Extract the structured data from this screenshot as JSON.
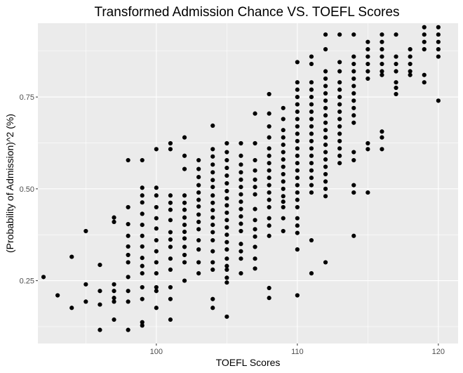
{
  "chart_data": {
    "type": "scatter",
    "title": "Transformed Admission Chance VS. TOEFL Scores",
    "xlabel": "TOEFL Scores",
    "ylabel": "(Probability of Admission)^2 (%)",
    "xlim": [
      91.6,
      121.4
    ],
    "ylim": [
      0.079,
      0.951
    ],
    "x_ticks": [
      100,
      110,
      120
    ],
    "x_tick_labels": [
      "100",
      "110",
      "120"
    ],
    "y_ticks": [
      0.25,
      0.5,
      0.75
    ],
    "y_tick_labels": [
      "0.25",
      "0.50",
      "0.75"
    ],
    "grid": true,
    "colors": {
      "panel": "#ebebeb",
      "grid": "#ffffff",
      "point": "#000000"
    },
    "points": [
      [
        92,
        0.26
      ],
      [
        93,
        0.21
      ],
      [
        94,
        0.315
      ],
      [
        94,
        0.176
      ],
      [
        95,
        0.385
      ],
      [
        95,
        0.24
      ],
      [
        95,
        0.193
      ],
      [
        96,
        0.293
      ],
      [
        96,
        0.222
      ],
      [
        96,
        0.185
      ],
      [
        96,
        0.116
      ],
      [
        97,
        0.422
      ],
      [
        97,
        0.41
      ],
      [
        97,
        0.24
      ],
      [
        97,
        0.222
      ],
      [
        97,
        0.203
      ],
      [
        97,
        0.193
      ],
      [
        97,
        0.144
      ],
      [
        98,
        0.578
      ],
      [
        98,
        0.45
      ],
      [
        98,
        0.404
      ],
      [
        98,
        0.372
      ],
      [
        98,
        0.343
      ],
      [
        98,
        0.32
      ],
      [
        98,
        0.3
      ],
      [
        98,
        0.26
      ],
      [
        98,
        0.222
      ],
      [
        98,
        0.193
      ],
      [
        98,
        0.116
      ],
      [
        99,
        0.578
      ],
      [
        99,
        0.503
      ],
      [
        99,
        0.482
      ],
      [
        99,
        0.463
      ],
      [
        99,
        0.432
      ],
      [
        99,
        0.402
      ],
      [
        99,
        0.372
      ],
      [
        99,
        0.343
      ],
      [
        99,
        0.312
      ],
      [
        99,
        0.29
      ],
      [
        99,
        0.27
      ],
      [
        99,
        0.232
      ],
      [
        99,
        0.2
      ],
      [
        99,
        0.137
      ],
      [
        99,
        0.128
      ],
      [
        100,
        0.608
      ],
      [
        100,
        0.503
      ],
      [
        100,
        0.482
      ],
      [
        100,
        0.45
      ],
      [
        100,
        0.42
      ],
      [
        100,
        0.392
      ],
      [
        100,
        0.36
      ],
      [
        100,
        0.33
      ],
      [
        100,
        0.3
      ],
      [
        100,
        0.27
      ],
      [
        100,
        0.232
      ],
      [
        100,
        0.222
      ],
      [
        100,
        0.176
      ],
      [
        101,
        0.624
      ],
      [
        101,
        0.608
      ],
      [
        101,
        0.482
      ],
      [
        101,
        0.462
      ],
      [
        101,
        0.443
      ],
      [
        101,
        0.415
      ],
      [
        101,
        0.382
      ],
      [
        101,
        0.362
      ],
      [
        101,
        0.342
      ],
      [
        101,
        0.31
      ],
      [
        101,
        0.28
      ],
      [
        101,
        0.232
      ],
      [
        101,
        0.2
      ],
      [
        101,
        0.144
      ],
      [
        102,
        0.64
      ],
      [
        102,
        0.59
      ],
      [
        102,
        0.554
      ],
      [
        102,
        0.482
      ],
      [
        102,
        0.462
      ],
      [
        102,
        0.443
      ],
      [
        102,
        0.422
      ],
      [
        102,
        0.402
      ],
      [
        102,
        0.383
      ],
      [
        102,
        0.365
      ],
      [
        102,
        0.342
      ],
      [
        102,
        0.32
      ],
      [
        102,
        0.3
      ],
      [
        102,
        0.25
      ],
      [
        103,
        0.578
      ],
      [
        103,
        0.554
      ],
      [
        103,
        0.532
      ],
      [
        103,
        0.51
      ],
      [
        103,
        0.49
      ],
      [
        103,
        0.47
      ],
      [
        103,
        0.452
      ],
      [
        103,
        0.43
      ],
      [
        103,
        0.41
      ],
      [
        103,
        0.39
      ],
      [
        103,
        0.36
      ],
      [
        103,
        0.335
      ],
      [
        103,
        0.3
      ],
      [
        103,
        0.27
      ],
      [
        104,
        0.672
      ],
      [
        104,
        0.608
      ],
      [
        104,
        0.588
      ],
      [
        104,
        0.566
      ],
      [
        104,
        0.545
      ],
      [
        104,
        0.524
      ],
      [
        104,
        0.505
      ],
      [
        104,
        0.482
      ],
      [
        104,
        0.462
      ],
      [
        104,
        0.442
      ],
      [
        104,
        0.422
      ],
      [
        104,
        0.402
      ],
      [
        104,
        0.382
      ],
      [
        104,
        0.36
      ],
      [
        104,
        0.33
      ],
      [
        104,
        0.3
      ],
      [
        104,
        0.28
      ],
      [
        104,
        0.2
      ],
      [
        104,
        0.176
      ],
      [
        105,
        0.624
      ],
      [
        105,
        0.6
      ],
      [
        105,
        0.578
      ],
      [
        105,
        0.557
      ],
      [
        105,
        0.536
      ],
      [
        105,
        0.515
      ],
      [
        105,
        0.494
      ],
      [
        105,
        0.474
      ],
      [
        105,
        0.455
      ],
      [
        105,
        0.435
      ],
      [
        105,
        0.415
      ],
      [
        105,
        0.395
      ],
      [
        105,
        0.375
      ],
      [
        105,
        0.355
      ],
      [
        105,
        0.335
      ],
      [
        105,
        0.31
      ],
      [
        105,
        0.29
      ],
      [
        105,
        0.28
      ],
      [
        105,
        0.258
      ],
      [
        105,
        0.245
      ],
      [
        105,
        0.152
      ],
      [
        106,
        0.624
      ],
      [
        106,
        0.59
      ],
      [
        106,
        0.566
      ],
      [
        106,
        0.545
      ],
      [
        106,
        0.525
      ],
      [
        106,
        0.505
      ],
      [
        106,
        0.485
      ],
      [
        106,
        0.465
      ],
      [
        106,
        0.445
      ],
      [
        106,
        0.425
      ],
      [
        106,
        0.405
      ],
      [
        106,
        0.385
      ],
      [
        106,
        0.35
      ],
      [
        106,
        0.33
      ],
      [
        106,
        0.31
      ],
      [
        106,
        0.27
      ],
      [
        107,
        0.705
      ],
      [
        107,
        0.624
      ],
      [
        107,
        0.578
      ],
      [
        107,
        0.55
      ],
      [
        107,
        0.525
      ],
      [
        107,
        0.505
      ],
      [
        107,
        0.485
      ],
      [
        107,
        0.445
      ],
      [
        107,
        0.415
      ],
      [
        107,
        0.39
      ],
      [
        107,
        0.37
      ],
      [
        107,
        0.342
      ],
      [
        107,
        0.31
      ],
      [
        107,
        0.283
      ],
      [
        108,
        0.758
      ],
      [
        108,
        0.705
      ],
      [
        108,
        0.67
      ],
      [
        108,
        0.64
      ],
      [
        108,
        0.61
      ],
      [
        108,
        0.59
      ],
      [
        108,
        0.57
      ],
      [
        108,
        0.55
      ],
      [
        108,
        0.53
      ],
      [
        108,
        0.51
      ],
      [
        108,
        0.49
      ],
      [
        108,
        0.47
      ],
      [
        108,
        0.45
      ],
      [
        108,
        0.42
      ],
      [
        108,
        0.4
      ],
      [
        108,
        0.372
      ],
      [
        108,
        0.23
      ],
      [
        108,
        0.203
      ],
      [
        109,
        0.72
      ],
      [
        109,
        0.69
      ],
      [
        109,
        0.66
      ],
      [
        109,
        0.64
      ],
      [
        109,
        0.62
      ],
      [
        109,
        0.6
      ],
      [
        109,
        0.58
      ],
      [
        109,
        0.56
      ],
      [
        109,
        0.54
      ],
      [
        109,
        0.52
      ],
      [
        109,
        0.5
      ],
      [
        109,
        0.48
      ],
      [
        109,
        0.465
      ],
      [
        109,
        0.45
      ],
      [
        109,
        0.42
      ],
      [
        109,
        0.385
      ],
      [
        110,
        0.845
      ],
      [
        110,
        0.79
      ],
      [
        110,
        0.77
      ],
      [
        110,
        0.75
      ],
      [
        110,
        0.73
      ],
      [
        110,
        0.71
      ],
      [
        110,
        0.69
      ],
      [
        110,
        0.67
      ],
      [
        110,
        0.65
      ],
      [
        110,
        0.63
      ],
      [
        110,
        0.61
      ],
      [
        110,
        0.59
      ],
      [
        110,
        0.57
      ],
      [
        110,
        0.55
      ],
      [
        110,
        0.53
      ],
      [
        110,
        0.51
      ],
      [
        110,
        0.49
      ],
      [
        110,
        0.47
      ],
      [
        110,
        0.45
      ],
      [
        110,
        0.42
      ],
      [
        110,
        0.4
      ],
      [
        110,
        0.38
      ],
      [
        110,
        0.335
      ],
      [
        110,
        0.21
      ],
      [
        111,
        0.86
      ],
      [
        111,
        0.84
      ],
      [
        111,
        0.79
      ],
      [
        111,
        0.77
      ],
      [
        111,
        0.75
      ],
      [
        111,
        0.73
      ],
      [
        111,
        0.71
      ],
      [
        111,
        0.69
      ],
      [
        111,
        0.67
      ],
      [
        111,
        0.65
      ],
      [
        111,
        0.63
      ],
      [
        111,
        0.61
      ],
      [
        111,
        0.59
      ],
      [
        111,
        0.57
      ],
      [
        111,
        0.55
      ],
      [
        111,
        0.53
      ],
      [
        111,
        0.51
      ],
      [
        111,
        0.49
      ],
      [
        111,
        0.36
      ],
      [
        111,
        0.27
      ],
      [
        112,
        0.92
      ],
      [
        112,
        0.88
      ],
      [
        112,
        0.82
      ],
      [
        112,
        0.8
      ],
      [
        112,
        0.78
      ],
      [
        112,
        0.76
      ],
      [
        112,
        0.74
      ],
      [
        112,
        0.72
      ],
      [
        112,
        0.7
      ],
      [
        112,
        0.68
      ],
      [
        112,
        0.66
      ],
      [
        112,
        0.64
      ],
      [
        112,
        0.62
      ],
      [
        112,
        0.6
      ],
      [
        112,
        0.58
      ],
      [
        112,
        0.56
      ],
      [
        112,
        0.54
      ],
      [
        112,
        0.52
      ],
      [
        112,
        0.5
      ],
      [
        112,
        0.48
      ],
      [
        112,
        0.3
      ],
      [
        113,
        0.92
      ],
      [
        113,
        0.845
      ],
      [
        113,
        0.82
      ],
      [
        113,
        0.79
      ],
      [
        113,
        0.77
      ],
      [
        113,
        0.75
      ],
      [
        113,
        0.73
      ],
      [
        113,
        0.71
      ],
      [
        113,
        0.69
      ],
      [
        113,
        0.67
      ],
      [
        113,
        0.65
      ],
      [
        113,
        0.63
      ],
      [
        113,
        0.61
      ],
      [
        113,
        0.59
      ],
      [
        113,
        0.57
      ],
      [
        114,
        0.92
      ],
      [
        114,
        0.86
      ],
      [
        114,
        0.84
      ],
      [
        114,
        0.82
      ],
      [
        114,
        0.8
      ],
      [
        114,
        0.78
      ],
      [
        114,
        0.76
      ],
      [
        114,
        0.74
      ],
      [
        114,
        0.72
      ],
      [
        114,
        0.7
      ],
      [
        114,
        0.68
      ],
      [
        114,
        0.6
      ],
      [
        114,
        0.578
      ],
      [
        114,
        0.51
      ],
      [
        114,
        0.49
      ],
      [
        114,
        0.372
      ],
      [
        115,
        0.9
      ],
      [
        115,
        0.88
      ],
      [
        115,
        0.86
      ],
      [
        115,
        0.84
      ],
      [
        115,
        0.82
      ],
      [
        115,
        0.8
      ],
      [
        115,
        0.624
      ],
      [
        115,
        0.608
      ],
      [
        115,
        0.49
      ],
      [
        116,
        0.92
      ],
      [
        116,
        0.9
      ],
      [
        116,
        0.88
      ],
      [
        116,
        0.86
      ],
      [
        116,
        0.84
      ],
      [
        116,
        0.82
      ],
      [
        116,
        0.81
      ],
      [
        116,
        0.656
      ],
      [
        116,
        0.64
      ],
      [
        116,
        0.608
      ],
      [
        117,
        0.92
      ],
      [
        117,
        0.86
      ],
      [
        117,
        0.84
      ],
      [
        117,
        0.82
      ],
      [
        117,
        0.79
      ],
      [
        117,
        0.775
      ],
      [
        117,
        0.758
      ],
      [
        118,
        0.88
      ],
      [
        118,
        0.86
      ],
      [
        118,
        0.84
      ],
      [
        118,
        0.82
      ],
      [
        118,
        0.81
      ],
      [
        119,
        0.94
      ],
      [
        119,
        0.92
      ],
      [
        119,
        0.9
      ],
      [
        119,
        0.88
      ],
      [
        119,
        0.81
      ],
      [
        119,
        0.79
      ],
      [
        120,
        0.94
      ],
      [
        120,
        0.92
      ],
      [
        120,
        0.9
      ],
      [
        120,
        0.88
      ],
      [
        120,
        0.86
      ],
      [
        120,
        0.74
      ]
    ]
  }
}
